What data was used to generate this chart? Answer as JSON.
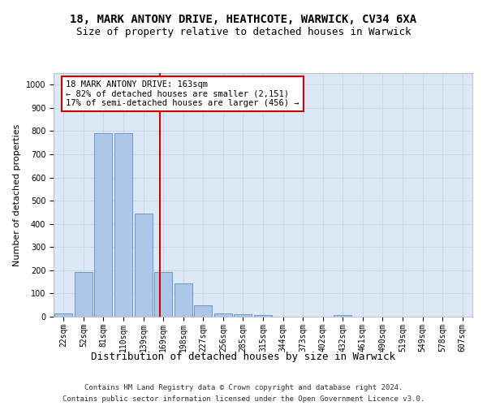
{
  "title1": "18, MARK ANTONY DRIVE, HEATHCOTE, WARWICK, CV34 6XA",
  "title2": "Size of property relative to detached houses in Warwick",
  "xlabel": "Distribution of detached houses by size in Warwick",
  "ylabel": "Number of detached properties",
  "categories": [
    "22sqm",
    "52sqm",
    "81sqm",
    "110sqm",
    "139sqm",
    "169sqm",
    "198sqm",
    "227sqm",
    "256sqm",
    "285sqm",
    "315sqm",
    "344sqm",
    "373sqm",
    "402sqm",
    "432sqm",
    "461sqm",
    "490sqm",
    "519sqm",
    "549sqm",
    "578sqm",
    "607sqm"
  ],
  "values": [
    15,
    193,
    790,
    790,
    443,
    193,
    143,
    48,
    15,
    10,
    8,
    0,
    0,
    0,
    8,
    0,
    0,
    0,
    0,
    0,
    0
  ],
  "bar_color": "#aec6e8",
  "bar_edge_color": "#5a8fc2",
  "grid_color": "#c8d8e8",
  "bg_color": "#dce8f5",
  "vline_color": "#cc0000",
  "annotation_line1": "18 MARK ANTONY DRIVE: 163sqm",
  "annotation_line2": "← 82% of detached houses are smaller (2,151)",
  "annotation_line3": "17% of semi-detached houses are larger (456) →",
  "annotation_box_color": "#ffffff",
  "annotation_box_edge": "#cc0000",
  "ylim": [
    0,
    1050
  ],
  "yticks": [
    0,
    100,
    200,
    300,
    400,
    500,
    600,
    700,
    800,
    900,
    1000
  ],
  "footer_line1": "Contains HM Land Registry data © Crown copyright and database right 2024.",
  "footer_line2": "Contains public sector information licensed under the Open Government Licence v3.0.",
  "title1_fontsize": 10,
  "title2_fontsize": 9,
  "xlabel_fontsize": 9,
  "ylabel_fontsize": 8,
  "tick_fontsize": 7,
  "annotation_fontsize": 7.5,
  "footer_fontsize": 6.5,
  "vline_pos": 4.82
}
